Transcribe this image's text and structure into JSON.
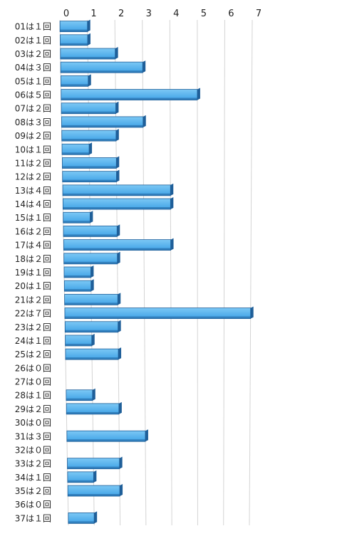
{
  "chart_data": {
    "type": "bar",
    "orientation": "horizontal",
    "categories": [
      "01は１回",
      "02は１回",
      "03は２回",
      "04は３回",
      "05は１回",
      "06は５回",
      "07は２回",
      "08は３回",
      "09は２回",
      "10は１回",
      "11は２回",
      "12は２回",
      "13は４回",
      "14は４回",
      "15は１回",
      "16は２回",
      "17は４回",
      "18は２回",
      "19は１回",
      "20は１回",
      "21は２回",
      "22は７回",
      "23は２回",
      "24は１回",
      "25は２回",
      "26は０回",
      "27は０回",
      "28は１回",
      "29は２回",
      "30は０回",
      "31は３回",
      "32は０回",
      "33は２回",
      "34は１回",
      "35は２回",
      "36は０回",
      "37は１回"
    ],
    "values": [
      1,
      1,
      2,
      3,
      1,
      5,
      2,
      3,
      2,
      1,
      2,
      2,
      4,
      4,
      1,
      2,
      4,
      2,
      1,
      1,
      2,
      7,
      2,
      1,
      2,
      0,
      0,
      1,
      2,
      0,
      3,
      0,
      2,
      1,
      2,
      0,
      1
    ],
    "xticks": [
      "0",
      "1",
      "2",
      "3",
      "4",
      "5",
      "6",
      "7"
    ],
    "xlim": [
      0,
      7
    ],
    "grid": true,
    "bar_color": "#44aaee",
    "bar_dark_color": "#1f5f99"
  }
}
